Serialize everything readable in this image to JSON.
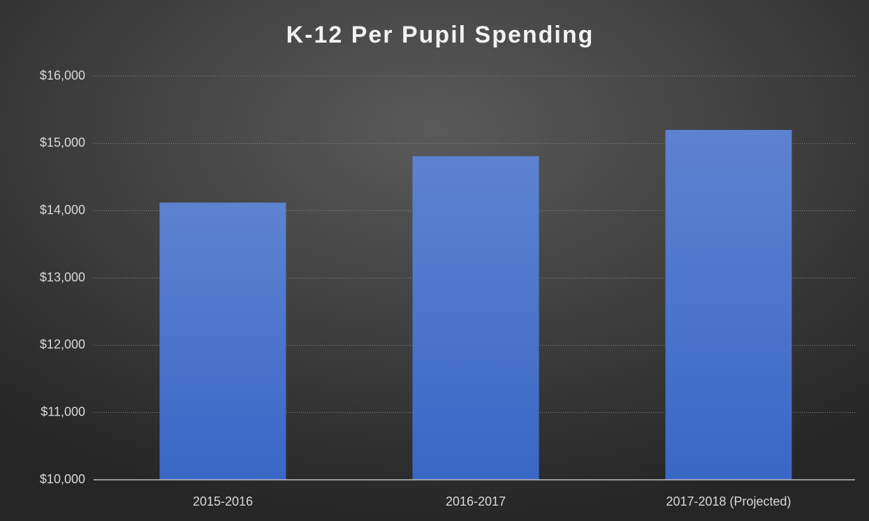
{
  "chart_data": {
    "type": "bar",
    "title": "K-12 Per Pupil Spending",
    "categories": [
      "2015-2016",
      "2016-2017",
      "2017-2018 (Projected)"
    ],
    "values": [
      14120,
      14810,
      15200
    ],
    "color": "#3a67c6",
    "ylim": [
      10000,
      16000
    ],
    "yticks": [
      {
        "value": 10000,
        "label": "$10,000"
      },
      {
        "value": 11000,
        "label": "$11,000"
      },
      {
        "value": 12000,
        "label": "$12,000"
      },
      {
        "value": 13000,
        "label": "$13,000"
      },
      {
        "value": 14000,
        "label": "$14,000"
      },
      {
        "value": 15000,
        "label": "$15,000"
      },
      {
        "value": 16000,
        "label": "$16,000"
      }
    ],
    "grid": true
  }
}
